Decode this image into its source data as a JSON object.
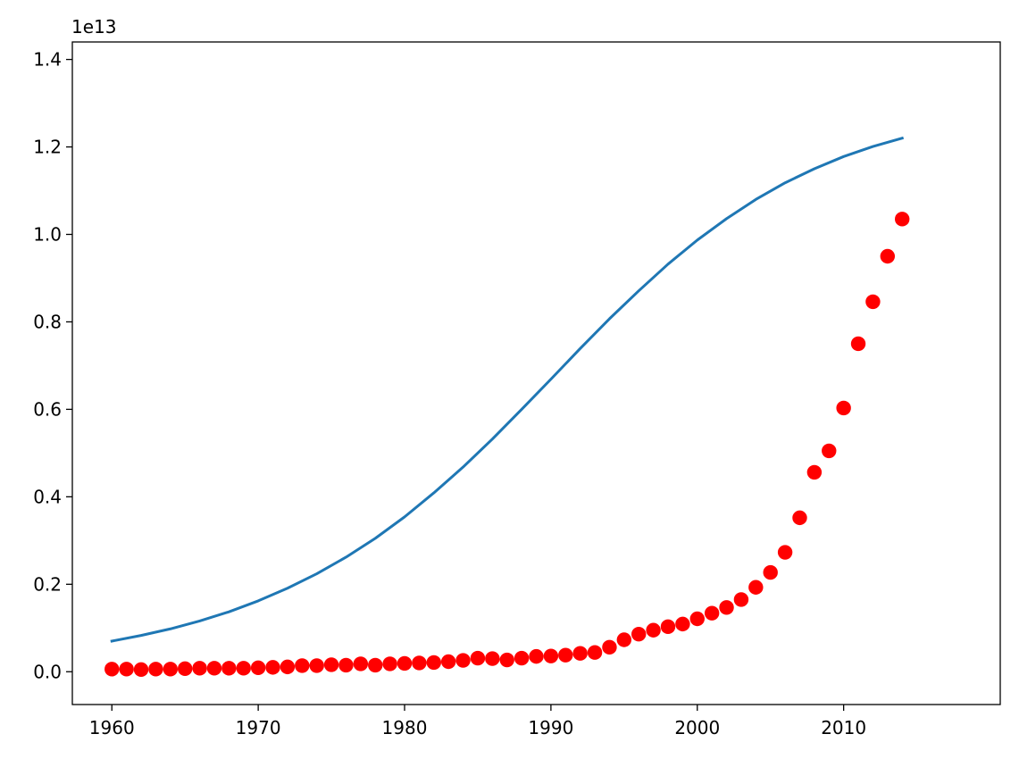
{
  "chart_data": {
    "type": "scatter",
    "title": "",
    "xlabel": "",
    "ylabel": "",
    "y_offset_label": "1e13",
    "xlim": [
      1957.3,
      2020.7
    ],
    "ylim": [
      -0.075,
      1.44
    ],
    "grid": false,
    "legend": "none",
    "x_ticks": [
      1960,
      1970,
      1980,
      1990,
      2000,
      2010
    ],
    "x_tick_labels": [
      "1960",
      "1970",
      "1980",
      "1990",
      "2000",
      "2010"
    ],
    "y_ticks": [
      0.0,
      0.2,
      0.4,
      0.6,
      0.8,
      1.0,
      1.2,
      1.4
    ],
    "y_tick_labels": [
      "0.0",
      "0.2",
      "0.4",
      "0.6",
      "0.8",
      "1.0",
      "1.2",
      "1.4"
    ],
    "series": [
      {
        "kind": "scatter",
        "color": "#ff0000",
        "x": [
          1960,
          1961,
          1962,
          1963,
          1964,
          1965,
          1966,
          1967,
          1968,
          1969,
          1970,
          1971,
          1972,
          1973,
          1974,
          1975,
          1976,
          1977,
          1978,
          1979,
          1980,
          1981,
          1982,
          1983,
          1984,
          1985,
          1986,
          1987,
          1988,
          1989,
          1990,
          1991,
          1992,
          1993,
          1994,
          1995,
          1996,
          1997,
          1998,
          1999,
          2000,
          2001,
          2002,
          2003,
          2004,
          2005,
          2006,
          2007,
          2008,
          2009,
          2010,
          2011,
          2012,
          2013,
          2014
        ],
        "y": [
          0.006,
          0.006,
          0.005,
          0.006,
          0.006,
          0.007,
          0.008,
          0.008,
          0.008,
          0.008,
          0.009,
          0.01,
          0.011,
          0.014,
          0.014,
          0.016,
          0.015,
          0.018,
          0.015,
          0.018,
          0.019,
          0.02,
          0.021,
          0.023,
          0.026,
          0.031,
          0.03,
          0.027,
          0.031,
          0.035,
          0.036,
          0.038,
          0.042,
          0.044,
          0.056,
          0.073,
          0.086,
          0.095,
          0.103,
          0.109,
          0.121,
          0.134,
          0.147,
          0.165,
          0.193,
          0.227,
          0.273,
          0.352,
          0.456,
          0.505,
          0.603,
          0.75,
          0.846,
          0.95,
          1.035
        ]
      },
      {
        "kind": "line",
        "color": "#1f77b4",
        "x": [
          1960,
          1962,
          1964,
          1966,
          1968,
          1970,
          1972,
          1974,
          1976,
          1978,
          1980,
          1982,
          1984,
          1986,
          1988,
          1990,
          1992,
          1994,
          1996,
          1998,
          2000,
          2002,
          2004,
          2006,
          2008,
          2010,
          2012,
          2014
        ],
        "y": [
          0.07,
          0.083,
          0.098,
          0.116,
          0.137,
          0.162,
          0.191,
          0.224,
          0.262,
          0.305,
          0.354,
          0.409,
          0.468,
          0.532,
          0.6,
          0.669,
          0.739,
          0.807,
          0.871,
          0.932,
          0.987,
          1.036,
          1.08,
          1.118,
          1.15,
          1.178,
          1.201,
          1.22
        ]
      }
    ]
  }
}
